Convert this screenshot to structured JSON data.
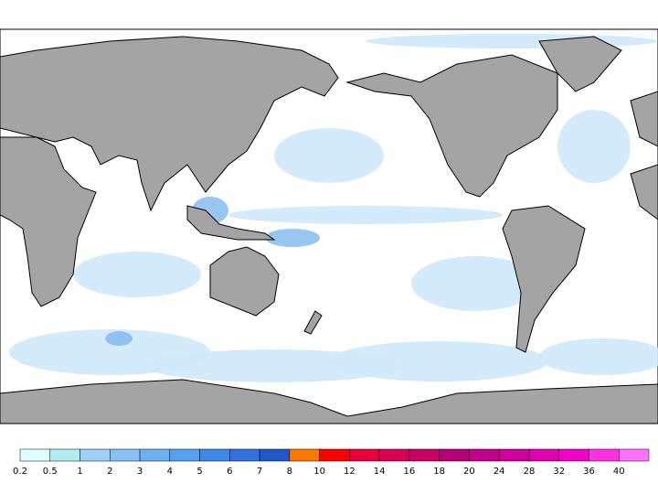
{
  "legend": {
    "ticks": [
      0.2,
      0.5,
      1,
      2,
      3,
      4,
      5,
      6,
      7,
      8,
      10,
      12,
      14,
      16,
      18,
      20,
      24,
      28,
      32,
      36,
      40
    ],
    "colors": [
      "#e0ffff",
      "#b0eef0",
      "#a0d0f8",
      "#88c0f8",
      "#6cb0f0",
      "#55a0f0",
      "#4088e8",
      "#3070e0",
      "#2058c8",
      "#ff7800",
      "#ff0000",
      "#e8003a",
      "#d80050",
      "#c80064",
      "#b40078",
      "#c0008c",
      "#d0009c",
      "#e000b0",
      "#f000c8",
      "#ff30e0",
      "#ff70ff"
    ]
  }
}
